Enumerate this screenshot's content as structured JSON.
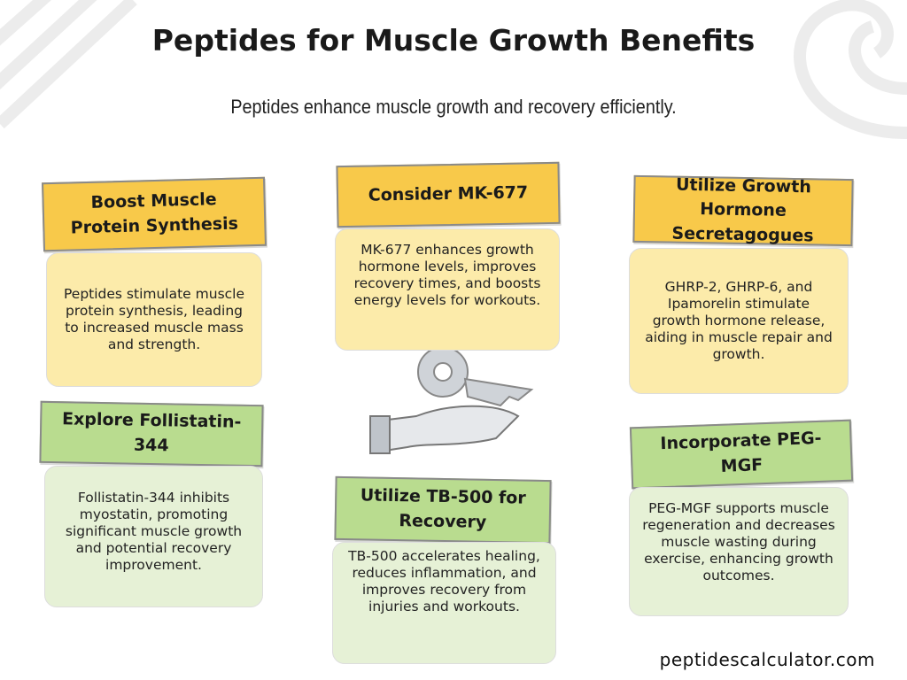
{
  "header": {
    "title": "Peptides for Muscle Growth Benefits",
    "subtitle": "Peptides enhance muscle growth and recovery efficiently."
  },
  "cards": [
    {
      "title": "Boost Muscle Protein Synthesis",
      "text": "Peptides stimulate muscle protein synthesis, leading to increased muscle mass and strength."
    },
    {
      "title": "Consider MK-677",
      "text": "MK-677 enhances growth hormone levels, improves recovery times, and boosts energy levels for workouts."
    },
    {
      "title": "Utilize Growth Hormone Secretagogues",
      "text": "GHRP-2, GHRP-6, and Ipamorelin stimulate growth hormone release, aiding in muscle repair and growth."
    },
    {
      "title": "Explore Follistatin-344",
      "text": "Follistatin-344 inhibits myostatin, promoting significant muscle growth and potential recovery improvement."
    },
    {
      "title": "Utilize TB-500 for Recovery",
      "text": "TB-500 accelerates healing, reduces inflammation, and improves recovery from injuries and workouts."
    },
    {
      "title": "Incorporate PEG-MGF",
      "text": "PEG-MGF supports muscle regeneration and decreases muscle wasting during exercise, enhancing growth outcomes."
    }
  ],
  "footer": {
    "site": "peptidescalculator.com"
  }
}
